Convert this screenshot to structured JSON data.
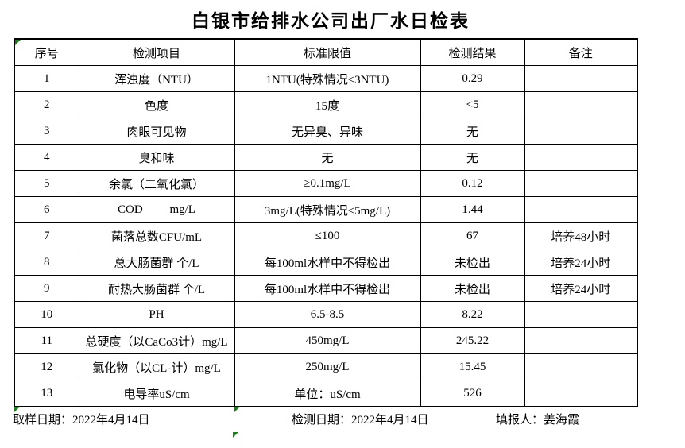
{
  "title": "白银市给排水公司出厂水日检表",
  "table": {
    "headers": [
      "序号",
      "检测项目",
      "标准限值",
      "检测结果",
      "备注"
    ],
    "rows": [
      {
        "no": "1",
        "item": "浑浊度（NTU）",
        "standard": "1NTU(特殊情况≤3NTU)",
        "result": "0.29",
        "remark": ""
      },
      {
        "no": "2",
        "item": "色度",
        "standard": "15度",
        "result": "<5",
        "remark": ""
      },
      {
        "no": "3",
        "item": "肉眼可见物",
        "standard": "无异臭、异味",
        "result": "无",
        "remark": ""
      },
      {
        "no": "4",
        "item": "臭和味",
        "standard": "无",
        "result": "无",
        "remark": ""
      },
      {
        "no": "5",
        "item": "余氯（二氧化氯）",
        "standard": "≥0.1mg/L",
        "result": "0.12",
        "remark": ""
      },
      {
        "no": "6",
        "item": "COD         mg/L",
        "standard": "3mg/L(特殊情况≤5mg/L)",
        "result": "1.44",
        "remark": ""
      },
      {
        "no": "7",
        "item": "菌落总数CFU/mL",
        "standard": "≤100",
        "result": "67",
        "remark": "培养48小时"
      },
      {
        "no": "8",
        "item": "总大肠菌群 个/L",
        "standard": "每100ml水样中不得检出",
        "result": "未检出",
        "remark": "培养24小时"
      },
      {
        "no": "9",
        "item": "耐热大肠菌群 个/L",
        "standard": "每100ml水样中不得检出",
        "result": "未检出",
        "remark": "培养24小时"
      },
      {
        "no": "10",
        "item": "PH",
        "standard": "6.5-8.5",
        "result": "8.22",
        "remark": ""
      },
      {
        "no": "11",
        "item": "总硬度（以CaCo3计）mg/L",
        "standard": "450mg/L",
        "result": "245.22",
        "remark": ""
      },
      {
        "no": "12",
        "item": "氯化物（以CL-计）mg/L",
        "standard": "250mg/L",
        "result": "15.45",
        "remark": ""
      },
      {
        "no": "13",
        "item": "电导率uS/cm",
        "standard": "单位：uS/cm",
        "result": "526",
        "remark": ""
      }
    ]
  },
  "footer": {
    "sampling_date": "取样日期：2022年4月14日",
    "test_date": "检测日期：2022年4月14日",
    "reporter": "填报人：姜海霞"
  },
  "icons": {
    "green_triangle": "excel-error-indicator"
  },
  "colors": {
    "error_indicator_green": "#1e7b1e",
    "border": "#000000",
    "background": "#ffffff",
    "text": "#000000"
  }
}
